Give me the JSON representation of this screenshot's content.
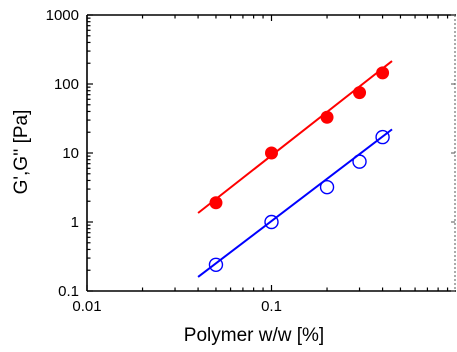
{
  "chart_data": {
    "type": "scatter",
    "title": "",
    "xlabel": "Polymer w/w [%]",
    "ylabel": "G',G'' [Pa]",
    "x_scale": "log",
    "y_scale": "log",
    "xlim": [
      0.01,
      1
    ],
    "ylim": [
      0.1,
      1000
    ],
    "x_ticks": [
      0.01,
      0.1
    ],
    "x_tick_labels": [
      "0.01",
      "0.1"
    ],
    "y_ticks": [
      0.1,
      1,
      10,
      100,
      1000
    ],
    "y_tick_labels": [
      "0.1",
      "1",
      "10",
      "100",
      "1000"
    ],
    "grid": false,
    "legend": "none",
    "series": [
      {
        "marker": "filled-circle",
        "color": "#ff0000",
        "x": [
          0.05,
          0.1,
          0.2,
          0.3,
          0.4
        ],
        "y": [
          1.9,
          10,
          33,
          75,
          145
        ],
        "fit_line": {
          "x": [
            0.04,
            0.45
          ],
          "y": [
            1.35,
            215
          ]
        }
      },
      {
        "marker": "open-circle",
        "color": "#0000ff",
        "x": [
          0.05,
          0.1,
          0.2,
          0.3,
          0.4
        ],
        "y": [
          0.24,
          1.0,
          3.2,
          7.5,
          17
        ],
        "fit_line": {
          "x": [
            0.04,
            0.45
          ],
          "y": [
            0.16,
            22
          ]
        }
      }
    ]
  }
}
